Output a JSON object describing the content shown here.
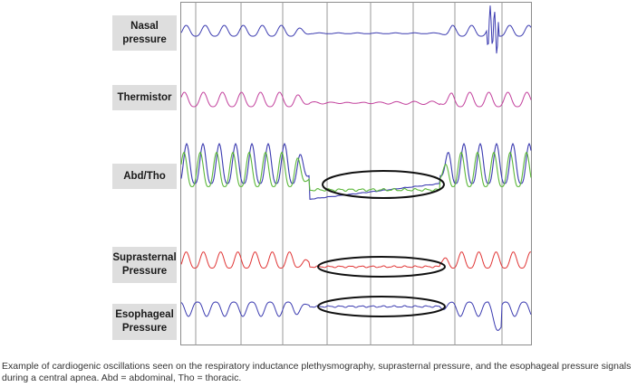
{
  "labels": {
    "nasal": "Nasal\npressure",
    "thermistor": "Thermistor",
    "abd_tho": "Abd/Tho",
    "suprasternal": "Suprasternal\nPressure",
    "esophageal": "Esophageal\nPressure"
  },
  "caption": "Example of cardiogenic oscillations seen on the respiratory inductance plethysmography, suprasternal pressure, and the esophageal pressure signals during a central apnea. Abd = abdominal, Tho = thoracic.",
  "colors": {
    "nasal": "#3b3bb0",
    "thermistor": "#c2409c",
    "abd": "#3b3bb0",
    "tho": "#5cb83a",
    "suprasternal": "#e03535",
    "esophageal": "#3b3bb0",
    "ellipse": "#111111",
    "gridline": "#9a9a9a"
  }
}
